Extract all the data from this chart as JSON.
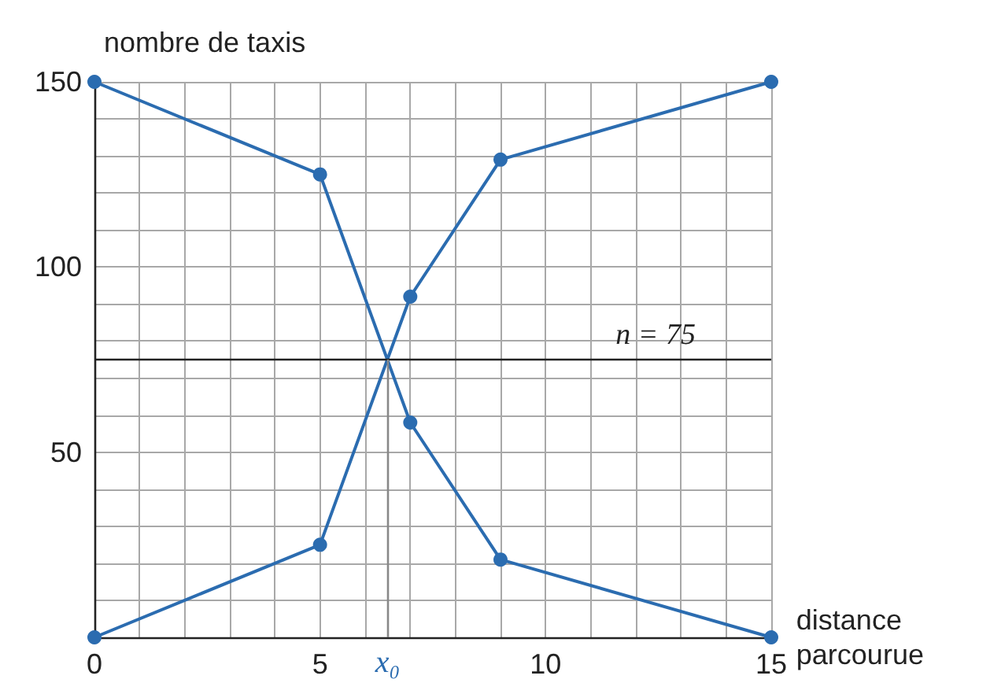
{
  "chart_data": {
    "type": "line",
    "xlabel": "distance parcourue",
    "ylabel": "nombre de taxis",
    "x": [
      0,
      5,
      7,
      9,
      15
    ],
    "series": [
      {
        "color": "#2b6cb0",
        "values": [
          0,
          25,
          92,
          129,
          150
        ]
      },
      {
        "color": "#2b6cb0",
        "values": [
          150,
          125,
          58,
          21,
          0
        ]
      }
    ],
    "xlim": [
      0,
      15
    ],
    "ylim": [
      0,
      150
    ],
    "xticks": [
      0,
      {
        "value": 1,
        "label": null
      },
      {
        "value": 2,
        "label": null
      },
      {
        "value": 3,
        "label": null
      },
      {
        "value": 4,
        "label": null
      },
      5,
      {
        "value": 6,
        "label": null
      },
      {
        "value": 7,
        "label": null
      },
      {
        "value": 8,
        "label": null
      },
      {
        "value": 9,
        "label": null
      },
      10,
      {
        "value": 11,
        "label": null
      },
      {
        "value": 12,
        "label": null
      },
      {
        "value": 13,
        "label": null
      },
      {
        "value": 14,
        "label": null
      },
      15
    ],
    "yticks": [
      {
        "value": 0,
        "label": null
      },
      {
        "value": 10,
        "label": null
      },
      {
        "value": 20,
        "label": null
      },
      {
        "value": 30,
        "label": null
      },
      {
        "value": 40,
        "label": null
      },
      50,
      {
        "value": 60,
        "label": null
      },
      {
        "value": 70,
        "label": null
      },
      {
        "value": 80,
        "label": null
      },
      {
        "value": 90,
        "label": null
      },
      100,
      {
        "value": 110,
        "label": null
      },
      {
        "value": 120,
        "label": null
      },
      {
        "value": 130,
        "label": null
      },
      {
        "value": 140,
        "label": null
      },
      150
    ],
    "grid": true,
    "marker": "circle",
    "line_style": "solid",
    "ref_lines": [
      {
        "axis": "y",
        "value": 75,
        "label": "n = 75",
        "color": "#222222"
      },
      {
        "axis": "x",
        "value": 6.5,
        "label": "x₀",
        "color": "#888888"
      }
    ]
  }
}
